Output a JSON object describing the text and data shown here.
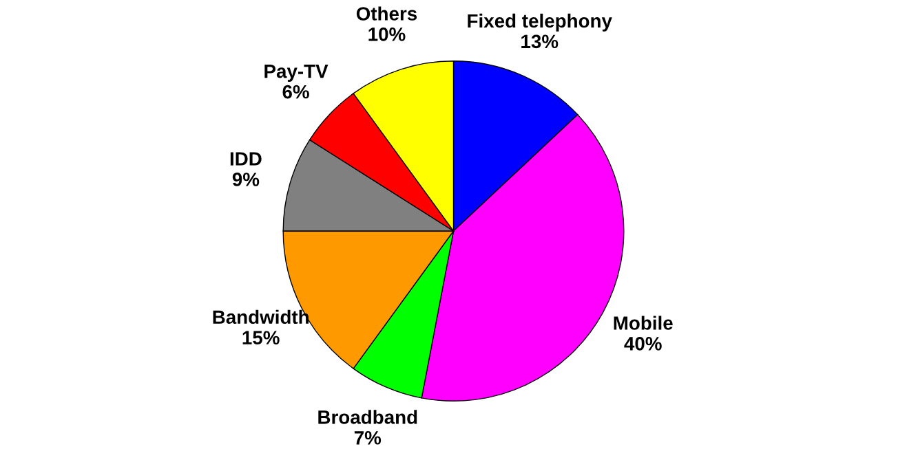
{
  "chart_data": {
    "type": "pie",
    "categories": [
      "Fixed telephony",
      "Mobile",
      "Broadband",
      "Bandwidth",
      "IDD",
      "Pay-TV",
      "Others"
    ],
    "values": [
      13,
      40,
      7,
      15,
      9,
      6,
      10
    ],
    "value_labels": [
      "13%",
      "40%",
      "7%",
      "15%",
      "9%",
      "6%",
      "10%"
    ],
    "colors": [
      "#0000ff",
      "#ff00ff",
      "#00ff00",
      "#ff9900",
      "#808080",
      "#ff0000",
      "#ffff00"
    ],
    "legend": false
  }
}
